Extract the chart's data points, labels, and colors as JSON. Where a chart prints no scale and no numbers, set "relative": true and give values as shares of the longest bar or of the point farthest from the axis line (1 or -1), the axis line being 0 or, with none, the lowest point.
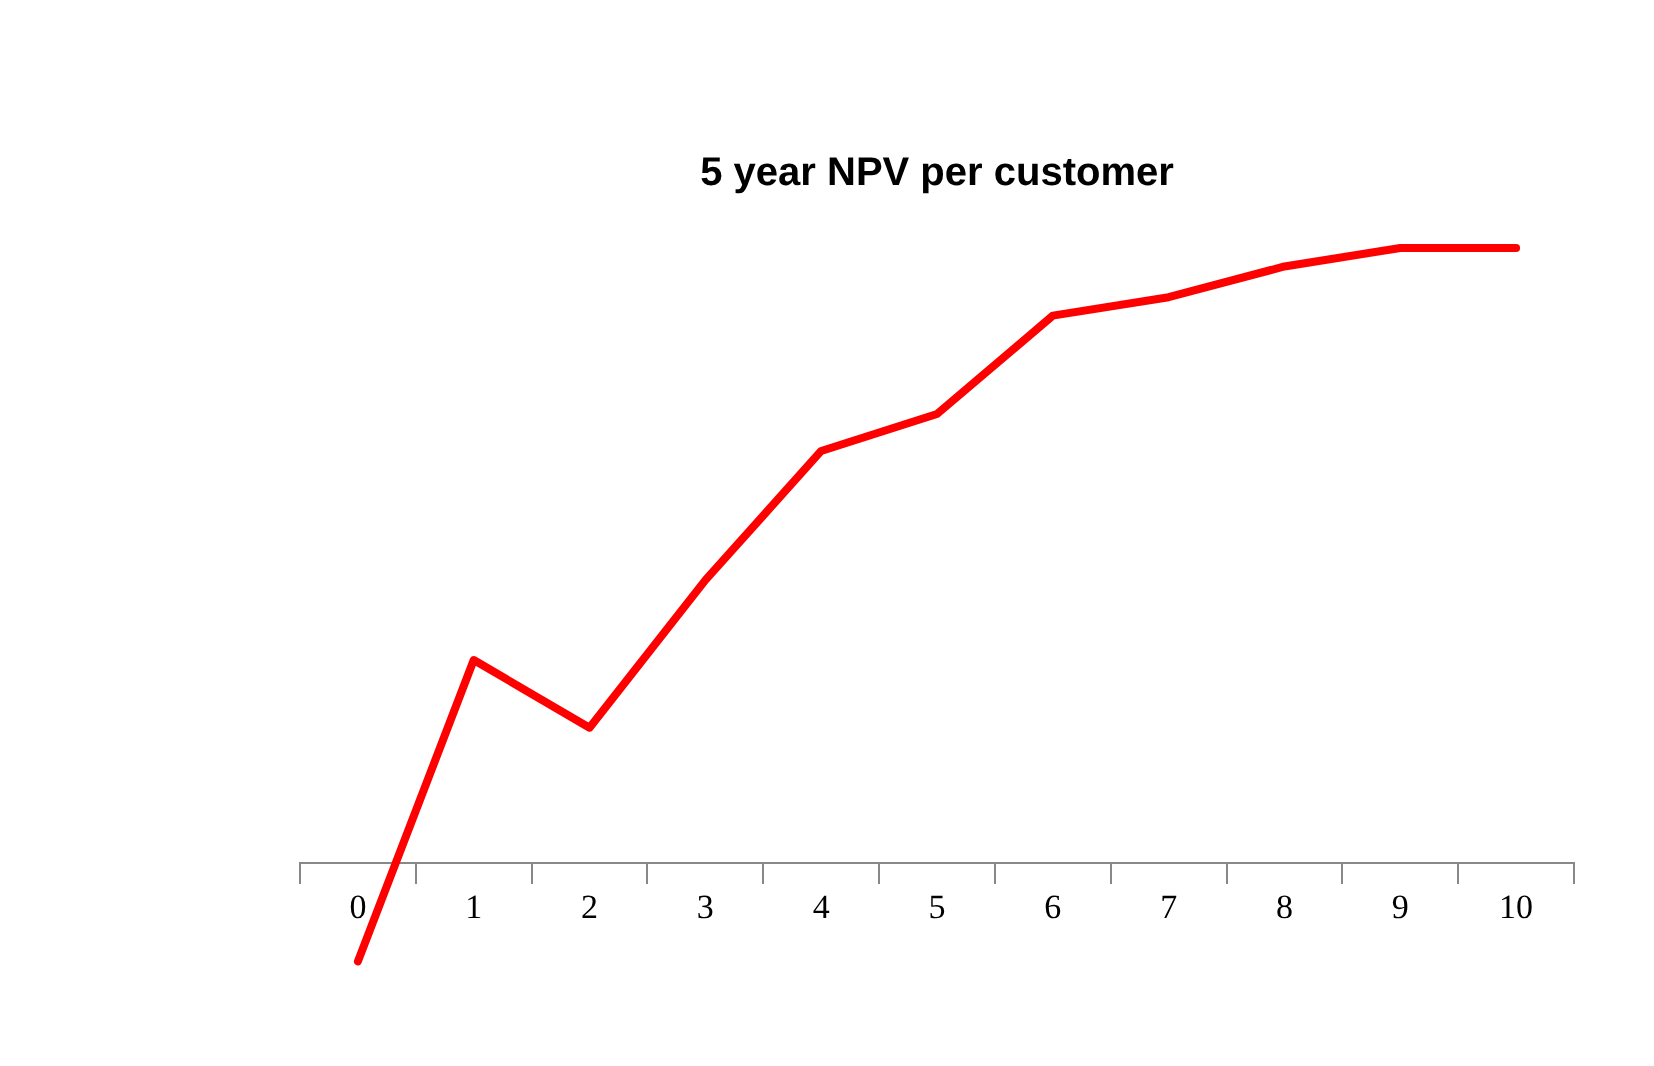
{
  "chart_data": {
    "type": "line",
    "title": "5 year NPV per customer",
    "relative": true,
    "categories": [
      "0",
      "1",
      "2",
      "3",
      "4",
      "5",
      "6",
      "7",
      "8",
      "9",
      "10"
    ],
    "series": [
      {
        "color": "#ff0000",
        "values": [
          -0.16,
          0.33,
          0.22,
          0.46,
          0.67,
          0.73,
          0.89,
          0.92,
          0.97,
          1,
          1
        ]
      }
    ],
    "legend": false,
    "grid": false,
    "marker": "none",
    "line_style": "solid"
  }
}
